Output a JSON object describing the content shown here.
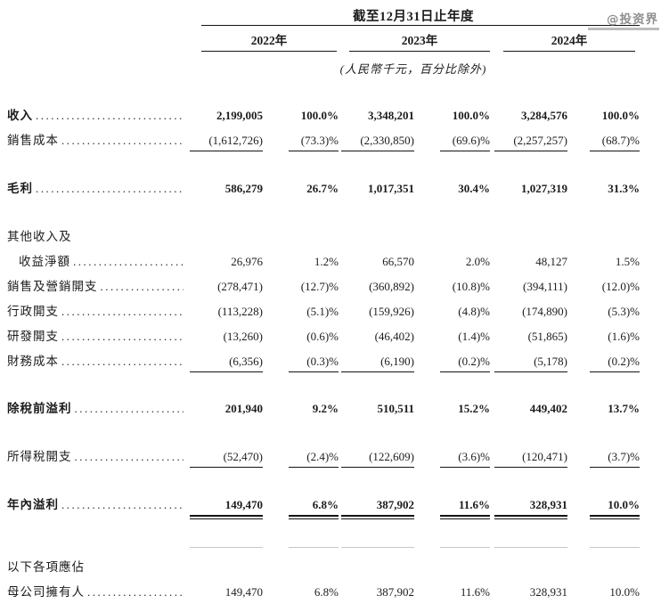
{
  "watermark": "@投资界",
  "colors": {
    "text": "#1c1c1c",
    "rule": "#141414",
    "watermark": "#8f8f8f"
  },
  "header": {
    "title": "截至12月31日止年度",
    "years": [
      "2022年",
      "2023年",
      "2024年"
    ],
    "unit_note": "(人民幣千元，百分比除外)"
  },
  "rows": [
    {
      "name": "revenue",
      "label": "收入",
      "bold": true,
      "values": [
        "2,199,005",
        "100.0%",
        "3,348,201",
        "100.0%",
        "3,284,576",
        "100.0%"
      ]
    },
    {
      "name": "cost-of-sales",
      "label": "銷售成本",
      "underline": "single",
      "values": [
        "(1,612,726)",
        "(73.3)%",
        "(2,330,850)",
        "(69.6)%",
        "(2,257,257)",
        "(68.7)%"
      ]
    },
    {
      "name": "gross-profit",
      "label": "毛利",
      "bold": true,
      "spacer": "sm",
      "values": [
        "586,279",
        "26.7%",
        "1,017,351",
        "30.4%",
        "1,027,319",
        "31.3%"
      ]
    },
    {
      "name": "other-income-caption",
      "label": "其他收入及",
      "caption": true,
      "spacer": "sm"
    },
    {
      "name": "other-income-net",
      "label": "收益淨額",
      "indent": true,
      "values": [
        "26,976",
        "1.2%",
        "66,570",
        "2.0%",
        "48,127",
        "1.5%"
      ]
    },
    {
      "name": "selling-marketing-expenses",
      "label": "銷售及營銷開支",
      "values": [
        "(278,471)",
        "(12.7)%",
        "(360,892)",
        "(10.8)%",
        "(394,111)",
        "(12.0)%"
      ]
    },
    {
      "name": "administrative-expenses",
      "label": "行政開支",
      "values": [
        "(113,228)",
        "(5.1)%",
        "(159,926)",
        "(4.8)%",
        "(174,890)",
        "(5.3)%"
      ]
    },
    {
      "name": "rd-expenses",
      "label": "研發開支",
      "values": [
        "(13,260)",
        "(0.6)%",
        "(46,402)",
        "(1.4)%",
        "(51,865)",
        "(1.6)%"
      ]
    },
    {
      "name": "finance-costs",
      "label": "財務成本",
      "underline": "single",
      "values": [
        "(6,356)",
        "(0.3)%",
        "(6,190)",
        "(0.2)%",
        "(5,178)",
        "(0.2)%"
      ]
    },
    {
      "name": "profit-before-tax",
      "label": "除稅前溢利",
      "bold": true,
      "spacer": "md",
      "values": [
        "201,940",
        "9.2%",
        "510,511",
        "15.2%",
        "449,402",
        "13.7%"
      ]
    },
    {
      "name": "income-tax-expense",
      "label": "所得稅開支",
      "underline": "single",
      "spacer": "sm",
      "values": [
        "(52,470)",
        "(2.4)%",
        "(122,609)",
        "(3.6)%",
        "(120,471)",
        "(3.7)%"
      ]
    },
    {
      "name": "profit-for-year",
      "label": "年內溢利",
      "bold": true,
      "underline": "double",
      "spacer": "sm",
      "values": [
        "149,470",
        "6.8%",
        "387,902",
        "11.6%",
        "328,931",
        "10.0%"
      ]
    },
    {
      "name": "attributable-caption",
      "label": "以下各項應佔",
      "caption": true,
      "spacer": "lg-artifact"
    },
    {
      "name": "owners-of-parent",
      "label": "母公司擁有人",
      "values": [
        "149,470",
        "6.8%",
        "387,902",
        "11.6%",
        "328,931",
        "10.0%"
      ]
    }
  ]
}
